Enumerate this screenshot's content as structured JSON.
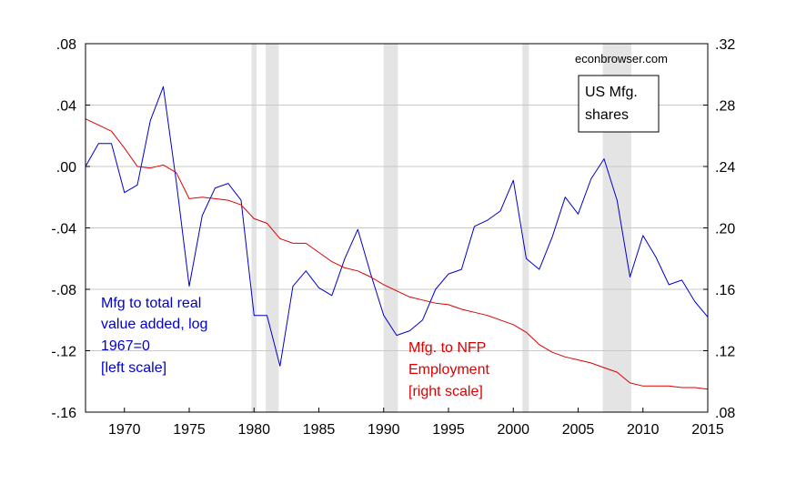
{
  "chart_data": {
    "type": "line",
    "title": "",
    "credit": "econbrowser.com",
    "legend_box": [
      "US Mfg.",
      "shares"
    ],
    "xlim": [
      1967,
      2015
    ],
    "x_ticks": [
      1970,
      1975,
      1980,
      1985,
      1990,
      1995,
      2000,
      2005,
      2010,
      2015
    ],
    "y_left": {
      "lim": [
        -0.16,
        0.08
      ],
      "ticks": [
        -0.16,
        -0.12,
        -0.08,
        -0.04,
        0.0,
        0.04,
        0.08
      ],
      "tick_labels": [
        "-.16",
        "-.12",
        "-.08",
        "-.04",
        ".00",
        ".04",
        ".08"
      ]
    },
    "y_right": {
      "lim": [
        0.08,
        0.32
      ],
      "ticks": [
        0.08,
        0.12,
        0.16,
        0.2,
        0.24,
        0.28,
        0.32
      ],
      "tick_labels": [
        ".08",
        ".12",
        ".16",
        ".20",
        ".24",
        ".28",
        ".32"
      ]
    },
    "grid": true,
    "recessions": [
      [
        1979.8,
        1980.2
      ],
      [
        1980.9,
        1981.9
      ],
      [
        1990.0,
        1991.1
      ],
      [
        2000.7,
        2001.2
      ],
      [
        2006.9,
        2009.1
      ]
    ],
    "series": [
      {
        "color": "#0000cc",
        "axis": "left",
        "label_lines": [
          "Mfg to total real",
          "value added, log",
          "1967=0",
          "[left scale]"
        ],
        "x": [
          1967,
          1968,
          1969,
          1970,
          1971,
          1972,
          1973,
          1974,
          1975,
          1976,
          1977,
          1978,
          1979,
          1980,
          1981,
          1982,
          1983,
          1984,
          1985,
          1986,
          1987,
          1988,
          1989,
          1990,
          1991,
          1992,
          1993,
          1994,
          1995,
          1996,
          1997,
          1998,
          1999,
          2000,
          2001,
          2002,
          2003,
          2004,
          2005,
          2006,
          2007,
          2008,
          2009,
          2010,
          2011,
          2012,
          2013,
          2014,
          2015
        ],
        "values": [
          0.0,
          0.015,
          0.015,
          -0.017,
          -0.012,
          0.03,
          0.052,
          -0.01,
          -0.078,
          -0.032,
          -0.014,
          -0.011,
          -0.022,
          -0.097,
          -0.097,
          -0.13,
          -0.078,
          -0.068,
          -0.079,
          -0.084,
          -0.06,
          -0.041,
          -0.07,
          -0.097,
          -0.11,
          -0.107,
          -0.1,
          -0.08,
          -0.07,
          -0.067,
          -0.039,
          -0.035,
          -0.029,
          -0.009,
          -0.06,
          -0.067,
          -0.046,
          -0.02,
          -0.031,
          -0.008,
          0.005,
          -0.022,
          -0.072,
          -0.045,
          -0.059,
          -0.077,
          -0.074,
          -0.088,
          -0.098
        ]
      },
      {
        "color": "#dd0000",
        "axis": "right",
        "label_lines": [
          "Mfg. to NFP",
          "Employment",
          "[right scale]"
        ],
        "x": [
          1967,
          1968,
          1969,
          1970,
          1971,
          1972,
          1973,
          1974,
          1975,
          1976,
          1977,
          1978,
          1979,
          1980,
          1981,
          1982,
          1983,
          1984,
          1985,
          1986,
          1987,
          1988,
          1989,
          1990,
          1991,
          1992,
          1993,
          1994,
          1995,
          1996,
          1997,
          1998,
          1999,
          2000,
          2001,
          2002,
          2003,
          2004,
          2005,
          2006,
          2007,
          2008,
          2009,
          2010,
          2011,
          2012,
          2013,
          2014,
          2015
        ],
        "values": [
          0.271,
          0.267,
          0.263,
          0.252,
          0.24,
          0.239,
          0.241,
          0.236,
          0.219,
          0.22,
          0.219,
          0.218,
          0.215,
          0.206,
          0.203,
          0.193,
          0.19,
          0.19,
          0.184,
          0.178,
          0.174,
          0.172,
          0.168,
          0.163,
          0.159,
          0.155,
          0.153,
          0.151,
          0.15,
          0.147,
          0.145,
          0.143,
          0.14,
          0.137,
          0.132,
          0.124,
          0.119,
          0.116,
          0.114,
          0.112,
          0.109,
          0.106,
          0.099,
          0.097,
          0.097,
          0.097,
          0.096,
          0.096,
          0.095
        ]
      }
    ]
  }
}
